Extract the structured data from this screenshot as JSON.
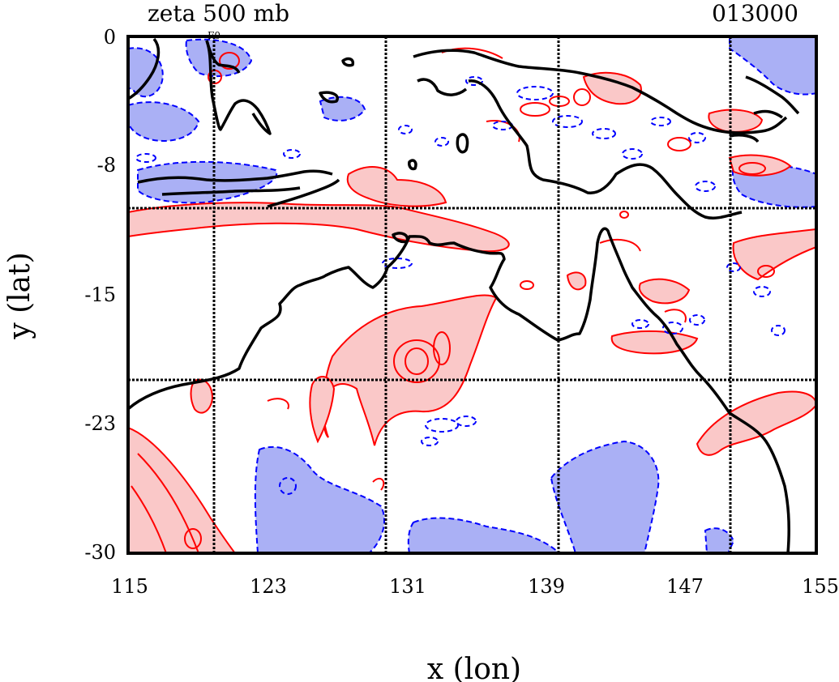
{
  "title_left": "zeta 500 mb",
  "title_right": "013000",
  "xlabel": "x (lon)",
  "ylabel": "y (lat)",
  "x_ticks": [
    "115",
    "123",
    "131",
    "139",
    "147",
    "155"
  ],
  "y_ticks": [
    "0",
    "-8",
    "-15",
    "-23",
    "-30"
  ],
  "point_label": "F0",
  "colors": {
    "positive_fill": "#fac8c8",
    "positive_line": "#ff0000",
    "negative_fill": "#aab0f5",
    "negative_line": "#0000ff",
    "coastline": "#000000",
    "grid": "#000000"
  }
}
